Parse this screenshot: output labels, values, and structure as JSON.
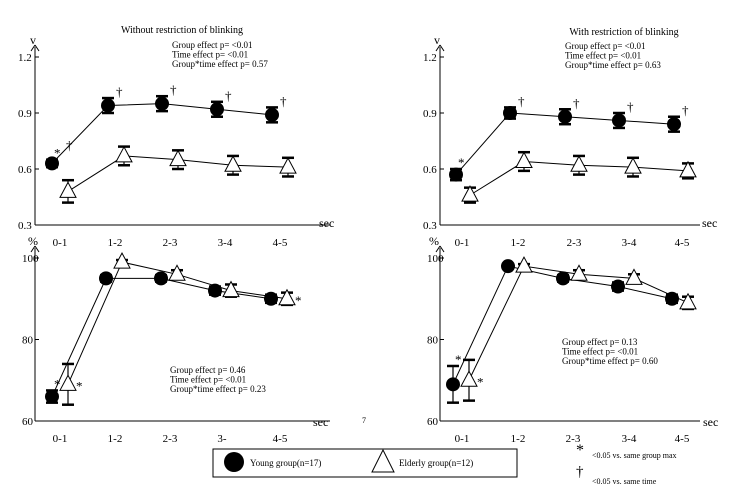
{
  "page_marker": "7",
  "chart_data": [
    {
      "type": "line",
      "title": "Without restriction of blinking",
      "ylabel": "v",
      "xlabel": "sec",
      "ylim": [
        0.3,
        1.2
      ],
      "yticks": [
        "0.3",
        "0.6",
        "0.9",
        "1.2"
      ],
      "categories": [
        "0-1",
        "1-2",
        "2-3",
        "3-4",
        "4-5"
      ],
      "stats": [
        "Group effect p= <0.01",
        "Time effect p= <0.01",
        "Group*time effect p= 0.57"
      ],
      "series": [
        {
          "name": "Young group(n=17)",
          "marker": "circle",
          "values": [
            0.63,
            0.94,
            0.95,
            0.92,
            0.89
          ],
          "err": [
            0.02,
            0.04,
            0.04,
            0.04,
            0.04
          ]
        },
        {
          "name": "Elderly group(n=12)",
          "marker": "triangle",
          "values": [
            0.48,
            0.67,
            0.65,
            0.62,
            0.61
          ],
          "err": [
            0.06,
            0.05,
            0.05,
            0.05,
            0.05
          ]
        }
      ],
      "annotations": [
        {
          "series": 0,
          "index": 0,
          "text": "*"
        },
        {
          "series": 0,
          "index": 0,
          "text": "†"
        },
        {
          "series": 0,
          "index": 1,
          "text": "†"
        },
        {
          "series": 0,
          "index": 2,
          "text": "†"
        },
        {
          "series": 0,
          "index": 3,
          "text": "†"
        },
        {
          "series": 0,
          "index": 4,
          "text": "†"
        }
      ]
    },
    {
      "type": "line",
      "title": "With restriction of blinking",
      "ylabel": "v",
      "xlabel": "sec",
      "ylim": [
        0.3,
        1.2
      ],
      "yticks": [
        "0.3",
        "0.6",
        "0.9",
        "1.2"
      ],
      "categories": [
        "0-1",
        "1-2",
        "2-3",
        "3-4",
        "4-5"
      ],
      "stats": [
        "Group effect p= <0.01",
        "Time effect p= <0.01",
        "Group*time effect p= 0.63"
      ],
      "series": [
        {
          "name": "Young group(n=17)",
          "marker": "circle",
          "values": [
            0.57,
            0.9,
            0.88,
            0.86,
            0.84
          ],
          "err": [
            0.03,
            0.03,
            0.04,
            0.04,
            0.04
          ]
        },
        {
          "name": "Elderly group(n=12)",
          "marker": "triangle",
          "values": [
            0.46,
            0.64,
            0.62,
            0.61,
            0.59
          ],
          "err": [
            0.04,
            0.05,
            0.05,
            0.05,
            0.04
          ]
        }
      ],
      "annotations": [
        {
          "series": 0,
          "index": 0,
          "text": "*"
        },
        {
          "series": 0,
          "index": 1,
          "text": "†"
        },
        {
          "series": 0,
          "index": 2,
          "text": "†"
        },
        {
          "series": 0,
          "index": 3,
          "text": "†"
        },
        {
          "series": 0,
          "index": 4,
          "text": "†"
        }
      ]
    },
    {
      "type": "line",
      "ylabel": "%",
      "xlabel": "sec",
      "ylim": [
        60,
        100
      ],
      "yticks": [
        "60",
        "80",
        "100"
      ],
      "categories": [
        "0-1",
        "1-2",
        "2-3",
        "3-",
        "4-5"
      ],
      "stats": [
        "Group effect p= 0.46",
        "Time effect p= <0.01",
        "Group*time effect p= 0.23"
      ],
      "series": [
        {
          "name": "Young group(n=17)",
          "marker": "circle",
          "values": [
            66,
            95,
            95,
            92,
            90
          ],
          "err": [
            1.5,
            0.8,
            0.8,
            1,
            1
          ]
        },
        {
          "name": "Elderly group(n=12)",
          "marker": "triangle",
          "values": [
            69,
            99,
            96,
            92,
            90
          ],
          "err": [
            5,
            0.5,
            1,
            1.5,
            1.5
          ]
        }
      ],
      "annotations": [
        {
          "series": 0,
          "index": 0,
          "text": "*"
        },
        {
          "series": 1,
          "index": 0,
          "text": "*"
        },
        {
          "series": 1,
          "index": 4,
          "text": "*"
        }
      ]
    },
    {
      "type": "line",
      "ylabel": "%",
      "xlabel": "sec",
      "ylim": [
        60,
        100
      ],
      "yticks": [
        "60",
        "80",
        "100"
      ],
      "categories": [
        "0-1",
        "1-2",
        "2-3",
        "3-4",
        "4-5"
      ],
      "stats": [
        "Group effect p= 0.13",
        "Time effect p= <0.01",
        "Group*time effect p= 0.60"
      ],
      "series": [
        {
          "name": "Young group(n=17)",
          "marker": "circle",
          "values": [
            69,
            98,
            95,
            93,
            90
          ],
          "err": [
            4.5,
            0.5,
            0.8,
            1,
            1
          ]
        },
        {
          "name": "Elderly group(n=12)",
          "marker": "triangle",
          "values": [
            70,
            98,
            96,
            95,
            89
          ],
          "err": [
            5,
            0.5,
            1,
            1,
            1.5
          ]
        }
      ],
      "annotations": [
        {
          "series": 0,
          "index": 0,
          "text": "*"
        },
        {
          "series": 1,
          "index": 0,
          "text": "*"
        }
      ]
    }
  ],
  "legend": {
    "young_label": "Young group(n=17)",
    "elderly_label": "Elderly group(n=12)"
  },
  "footnotes": {
    "star_symbol": "*",
    "star_text": "<0.05 vs. same group max",
    "dagger_symbol": "†",
    "dagger_text": "<0.05 vs. same time"
  }
}
